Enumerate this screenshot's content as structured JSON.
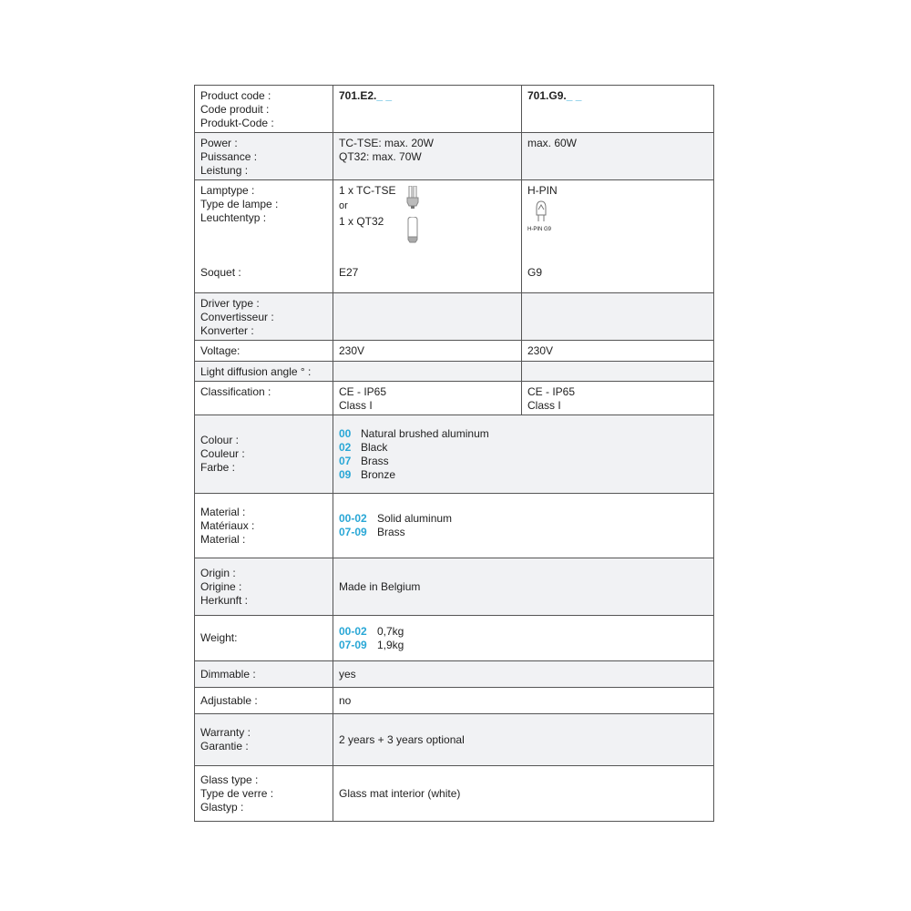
{
  "product_code": {
    "labels": [
      "Product code :",
      "Code produit :",
      "Produkt-Code  :"
    ],
    "col1_prefix": "701.E2.",
    "col2_prefix": "701.G9.",
    "suffix": "_ _"
  },
  "power": {
    "labels": [
      "Power :",
      "Puissance :",
      "Leistung :"
    ],
    "col1": [
      "TC-TSE: max. 20W",
      "QT32: max. 70W"
    ],
    "col2": "max. 60W"
  },
  "lamptype": {
    "labels": [
      "Lamptype :",
      "Type de lampe :",
      "Leuchtentyp :"
    ],
    "col1": [
      "1 x TC-TSE",
      "or",
      "1 x QT32"
    ],
    "col2": "H-PIN",
    "col2_icon_caption": "H-PIN  G9",
    "icons": [
      "compact-fluorescent-lamp-icon",
      "tubular-halogen-lamp-icon",
      "g9-halogen-capsule-icon"
    ]
  },
  "soquet": {
    "label": "Soquet :",
    "col1": "E27",
    "col2": "G9"
  },
  "driver": {
    "labels": [
      "Driver type :",
      "Convertisseur :",
      "Konverter :"
    ]
  },
  "voltage": {
    "label": "Voltage:",
    "col1": "230V",
    "col2": "230V"
  },
  "diffusion": {
    "label": "Light diffusion angle ° :"
  },
  "classification": {
    "label": "Classification :",
    "col1": [
      "CE - IP65",
      "Class I"
    ],
    "col2": [
      "CE - IP65",
      "Class I"
    ]
  },
  "colour": {
    "labels": [
      "Colour :",
      "Couleur :",
      "Farbe :"
    ],
    "items": [
      {
        "code": "00",
        "name": "Natural brushed aluminum"
      },
      {
        "code": "02",
        "name": "Black"
      },
      {
        "code": "07",
        "name": "Brass"
      },
      {
        "code": "09",
        "name": "Bronze"
      }
    ]
  },
  "material": {
    "labels": [
      "Material :",
      "Matériaux :",
      "Material :"
    ],
    "items": [
      {
        "code": "00-02",
        "name": "Solid aluminum"
      },
      {
        "code": "07-09",
        "name": "Brass"
      }
    ]
  },
  "origin": {
    "labels": [
      "Origin :",
      "Origine :",
      "Herkunft :"
    ],
    "value": "Made in Belgium"
  },
  "weight": {
    "label": "Weight:",
    "items": [
      {
        "code": "00-02",
        "name": "0,7kg"
      },
      {
        "code": "07-09",
        "name": "1,9kg"
      }
    ]
  },
  "dimmable": {
    "label": "Dimmable :",
    "value": "yes"
  },
  "adjustable": {
    "label": "Adjustable :",
    "value": "no"
  },
  "warranty": {
    "labels": [
      "Warranty :",
      "Garantie :"
    ],
    "value": "2 years + 3 years optional"
  },
  "glass": {
    "labels": [
      "Glass type :",
      "Type de verre :",
      "Glastyp :"
    ],
    "value": "Glass mat interior (white)"
  },
  "colors": {
    "accent": "#29a7d6",
    "shade": "#f1f2f4",
    "border": "#555555"
  }
}
